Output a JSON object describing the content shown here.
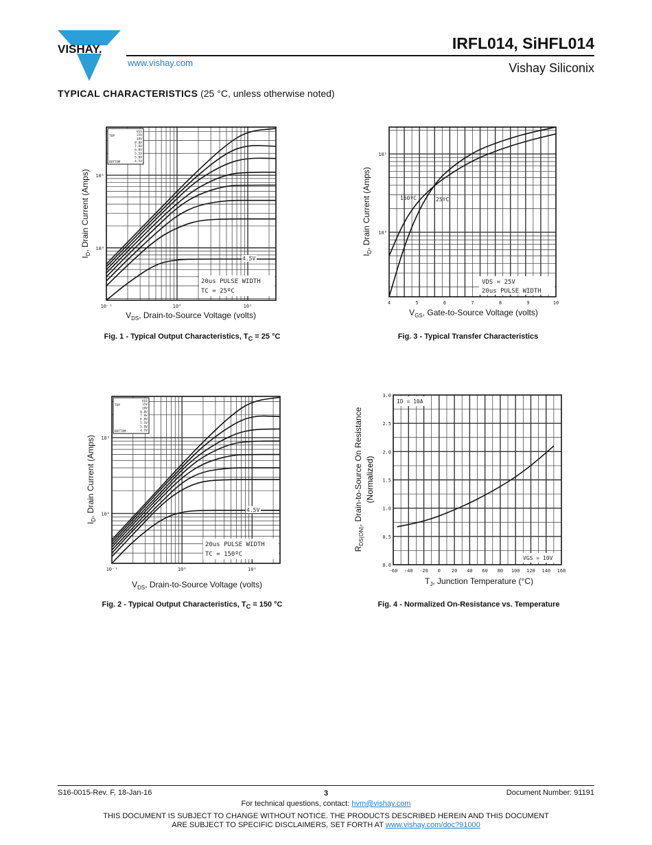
{
  "header": {
    "logo_text": "VISHAY.",
    "website": "www.vishay.com",
    "part_title": "IRFL014, SiHFL014",
    "company": "Vishay Siliconix",
    "brand_color": "#2a9fd8"
  },
  "section": {
    "title": "TYPICAL CHARACTERISTICS",
    "note": "(25 °C, unless otherwise noted)"
  },
  "figures": [
    {
      "caption_main": "Fig. 1 - Typical Output Characteristics, T",
      "caption_sub": "C",
      "caption_rest": " = 25 °C"
    },
    {
      "caption_main": "Fig. 2 - Typical Output Characteristics, T",
      "caption_sub": "C",
      "caption_rest": " = 150 °C"
    },
    {
      "caption_main": "Fig. 3 - Typical Transfer Characteristics",
      "caption_sub": "",
      "caption_rest": ""
    },
    {
      "caption_main": "Fig. 4 - Normalized On-Resistance vs. Temperature",
      "caption_sub": "",
      "caption_rest": ""
    }
  ],
  "chart_data": [
    {
      "type": "line",
      "xscale": "log",
      "yscale": "log",
      "xlim": [
        0.1,
        25
      ],
      "ylim": [
        0.19,
        46
      ],
      "xlabel": {
        "main": "V",
        "sub": "DS",
        "rest": ", Drain-to-Source Voltage (volts)"
      },
      "ylabel": {
        "main": "I",
        "sub": "D",
        "rest": ", Drain Current (Amps)"
      },
      "x_ticks": [
        {
          "v": 0.1,
          "label": "10⁻¹"
        },
        {
          "v": 1,
          "label": "10⁰"
        },
        {
          "v": 10,
          "label": "10¹"
        }
      ],
      "y_ticks": [
        {
          "v": 1,
          "label": "10⁰"
        },
        {
          "v": 10,
          "label": "10¹"
        }
      ],
      "grid": true,
      "legend": {
        "position": "top-left",
        "header": "VGS",
        "top_label": "TOP",
        "bottom_label": "BOTTOM",
        "entries": [
          "15V",
          "10V",
          "8.0V",
          "7.0V",
          "6.0V",
          "5.5V",
          "5.0V",
          "4.5V"
        ]
      },
      "annotations": [
        "20us PULSE WIDTH",
        "TC = 25ºC",
        "4.5V"
      ],
      "x": [
        0.1,
        0.2,
        0.5,
        1,
        2,
        5,
        10,
        25
      ],
      "series": [
        {
          "name": "15V",
          "values": [
            0.6,
            1.2,
            3.0,
            6.0,
            11.8,
            26.6,
            40.5,
            44
          ]
        },
        {
          "name": "10V",
          "values": [
            0.55,
            1.1,
            2.74,
            5.4,
            10.2,
            20.5,
            26.1,
            25
          ]
        },
        {
          "name": "8.0V",
          "values": [
            0.5,
            1.0,
            2.48,
            4.8,
            8.8,
            14.6,
            17.3,
            17
          ]
        },
        {
          "name": "7.0V",
          "values": [
            0.45,
            0.9,
            2.2,
            4.1,
            6.9,
            10.3,
            11,
            11
          ]
        },
        {
          "name": "6.0V",
          "values": [
            0.4,
            0.8,
            1.9,
            3.6,
            5.5,
            7.2,
            7.3,
            7.3
          ]
        },
        {
          "name": "5.5V",
          "values": [
            0.35,
            0.69,
            1.6,
            2.8,
            3.9,
            4.5,
            4.5,
            4.5
          ]
        },
        {
          "name": "5.0V",
          "values": [
            0.3,
            0.58,
            1.3,
            1.9,
            2.4,
            2.5,
            2.5,
            2.5
          ]
        },
        {
          "name": "4.5V",
          "values": [
            0.19,
            0.33,
            0.6,
            0.69,
            0.7,
            0.7,
            0.7,
            0.7
          ]
        }
      ]
    },
    {
      "type": "line",
      "xscale": "log",
      "yscale": "log",
      "xlim": [
        0.1,
        25
      ],
      "ylim": [
        0.22,
        35
      ],
      "xlabel": {
        "main": "V",
        "sub": "DS",
        "rest": ", Drain-to-Source Voltage (volts)"
      },
      "ylabel": {
        "main": "I",
        "sub": "D",
        "rest": ", Drain Current (Amps)"
      },
      "x_ticks": [
        {
          "v": 0.1,
          "label": "10⁻¹"
        },
        {
          "v": 1,
          "label": "10⁰"
        },
        {
          "v": 10,
          "label": "10¹"
        }
      ],
      "y_ticks": [
        {
          "v": 1,
          "label": "10⁰"
        },
        {
          "v": 10,
          "label": "10¹"
        }
      ],
      "grid": true,
      "legend": {
        "position": "top-left",
        "header": "VGS",
        "top_label": "TOP",
        "bottom_label": "BOTTOM",
        "entries": [
          "15V",
          "10V",
          "8.0V",
          "7.0V",
          "6.0V",
          "5.5V",
          "5.0V",
          "4.5V"
        ]
      },
      "annotations": [
        "20us PULSE WIDTH",
        "TC = 150ºC",
        "4.5V"
      ],
      "x": [
        0.1,
        0.2,
        0.5,
        1,
        2,
        5,
        10,
        25
      ],
      "series": [
        {
          "name": "15V",
          "values": [
            0.45,
            0.9,
            2.25,
            4.5,
            8.8,
            19.7,
            30.5,
            34
          ]
        },
        {
          "name": "10V",
          "values": [
            0.42,
            0.84,
            2.1,
            4.1,
            7.8,
            14.6,
            19.5,
            19
          ]
        },
        {
          "name": "8.0V",
          "values": [
            0.39,
            0.78,
            1.9,
            3.8,
            6.6,
            10.8,
            12.9,
            13
          ]
        },
        {
          "name": "7.0V",
          "values": [
            0.36,
            0.72,
            1.75,
            3.4,
            5.7,
            8.4,
            9,
            9
          ]
        },
        {
          "name": "6.0V",
          "values": [
            0.33,
            0.65,
            1.6,
            3.0,
            4.6,
            5.9,
            6,
            6
          ]
        },
        {
          "name": "5.5V",
          "values": [
            0.3,
            0.6,
            1.4,
            2.6,
            3.6,
            4,
            4,
            4
          ]
        },
        {
          "name": "5.0V",
          "values": [
            0.27,
            0.53,
            1.3,
            2.1,
            2.7,
            2.8,
            2.8,
            2.8
          ]
        },
        {
          "name": "4.5V",
          "values": [
            0.22,
            0.43,
            0.84,
            1.06,
            1.1,
            1.1,
            1.1,
            1.1
          ]
        }
      ]
    },
    {
      "type": "line",
      "xscale": "linear",
      "yscale": "log",
      "xlim": [
        4,
        10
      ],
      "ylim": [
        0.15,
        22
      ],
      "xlabel": {
        "main": "V",
        "sub": "GS",
        "rest": ", Gate-to-Source Voltage (volts)"
      },
      "ylabel": {
        "main": "I",
        "sub": "D",
        "rest": ", Drain Current (Amps)"
      },
      "x_ticks": [
        {
          "v": 4,
          "label": "4"
        },
        {
          "v": 5,
          "label": "5"
        },
        {
          "v": 6,
          "label": "6"
        },
        {
          "v": 7,
          "label": "7"
        },
        {
          "v": 8,
          "label": "8"
        },
        {
          "v": 9,
          "label": "9"
        },
        {
          "v": 10,
          "label": "10"
        }
      ],
      "y_ticks": [
        {
          "v": 1,
          "label": "10⁰"
        },
        {
          "v": 10,
          "label": "10¹"
        }
      ],
      "grid": true,
      "annotations": [
        "VDS = 25V",
        "20us PULSE WIDTH"
      ],
      "x": [
        4,
        4.5,
        5,
        5.5,
        6,
        7,
        8,
        9,
        10
      ],
      "series": [
        {
          "name": "25ºC",
          "values": [
            0.15,
            0.6,
            1.7,
            3.5,
            5.8,
            10.5,
            14.5,
            18.5,
            22
          ]
        },
        {
          "name": "150ºC",
          "values": [
            0.5,
            1.3,
            2.4,
            3.6,
            5.0,
            8.3,
            11.5,
            14.8,
            18
          ]
        }
      ]
    },
    {
      "type": "line",
      "xscale": "linear",
      "yscale": "linear",
      "xlim": [
        -60,
        160
      ],
      "ylim": [
        0,
        3.0
      ],
      "xlabel": {
        "main": "T",
        "sub": "J",
        "rest": ", Junction Temperature (°C)"
      },
      "ylabel": {
        "main": "R",
        "sub": "DS(ON)",
        "rest": ", Drain-to-Source On Resistance",
        "line2": "(Normalized)"
      },
      "x_ticks": [
        {
          "v": -60,
          "label": "-60"
        },
        {
          "v": -40,
          "label": "-40"
        },
        {
          "v": -20,
          "label": "-20"
        },
        {
          "v": 0,
          "label": "0"
        },
        {
          "v": 20,
          "label": "20"
        },
        {
          "v": 40,
          "label": "40"
        },
        {
          "v": 60,
          "label": "60"
        },
        {
          "v": 80,
          "label": "80"
        },
        {
          "v": 100,
          "label": "100"
        },
        {
          "v": 120,
          "label": "120"
        },
        {
          "v": 140,
          "label": "140"
        },
        {
          "v": 160,
          "label": "160"
        }
      ],
      "y_ticks": [
        {
          "v": 0,
          "label": "0.0"
        },
        {
          "v": 0.5,
          "label": "0.5"
        },
        {
          "v": 1.0,
          "label": "1.0"
        },
        {
          "v": 1.5,
          "label": "1.5"
        },
        {
          "v": 2.0,
          "label": "2.0"
        },
        {
          "v": 2.5,
          "label": "2.5"
        },
        {
          "v": 3.0,
          "label": "3.0"
        }
      ],
      "grid": true,
      "annotations": [
        "ID = 10A",
        "VGS = 10V"
      ],
      "x": [
        -55,
        -40,
        -20,
        0,
        20,
        40,
        60,
        80,
        100,
        120,
        140,
        150
      ],
      "series": [
        {
          "values": [
            0.67,
            0.71,
            0.77,
            0.86,
            0.97,
            1.09,
            1.23,
            1.38,
            1.55,
            1.75,
            1.98,
            2.1
          ]
        }
      ]
    }
  ],
  "footer": {
    "revision": "S16-0015-Rev. F, 18-Jan-16",
    "page_number": "3",
    "document_number": "Document Number: 91191",
    "contact_prefix": "For technical questions, contact: ",
    "contact_email": "hvm@vishay.com",
    "disclaimer_line1": "THIS DOCUMENT IS SUBJECT TO CHANGE WITHOUT NOTICE. THE PRODUCTS DESCRIBED HEREIN AND THIS DOCUMENT",
    "disclaimer_line2_prefix": "ARE SUBJECT TO SPECIFIC DISCLAIMERS, SET FORTH AT ",
    "disclaimer_link": "www.vishay.com/doc?91000"
  }
}
